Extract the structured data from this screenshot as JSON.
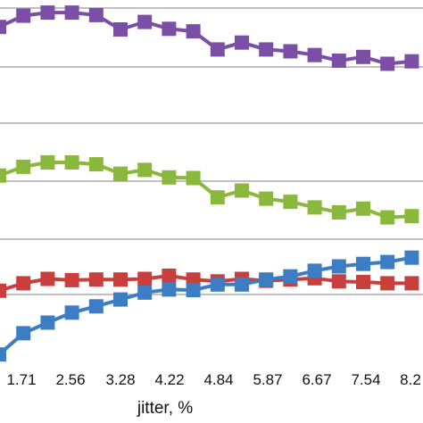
{
  "chart_data": {
    "type": "line",
    "xlabel": "jitter, %",
    "categories": [
      "0.85",
      "1.71",
      "2.12",
      "2.56",
      "2.90",
      "3.28",
      "3.74",
      "4.22",
      "4.52",
      "4.84",
      "5.38",
      "5.87",
      "6.29",
      "6.67",
      "7.12",
      "7.54",
      "7.90",
      "8.2"
    ],
    "tick_labels": [
      "1.71",
      "2.56",
      "3.28",
      "4.22",
      "4.84",
      "5.87",
      "6.67",
      "7.54",
      "8.2"
    ],
    "grid": true,
    "series": [
      {
        "color": "#7b4fa6",
        "values": [
          0.64,
          0.82,
          0.87,
          0.87,
          0.83,
          0.6,
          0.72,
          0.61,
          0.57,
          0.28,
          0.39,
          0.28,
          0.25,
          0.19,
          0.1,
          0.16,
          0.05,
          0.09
        ]
      },
      {
        "color": "#8ab83c",
        "values": [
          0.09,
          0.23,
          0.3,
          0.3,
          0.27,
          0.12,
          0.18,
          0.06,
          0.05,
          -0.26,
          -0.15,
          -0.28,
          -0.33,
          -0.42,
          -0.5,
          -0.44,
          -0.58,
          -0.56
        ]
      },
      {
        "color": "#c93f3d",
        "values": [
          0.06,
          0.18,
          0.25,
          0.23,
          0.24,
          0.24,
          0.25,
          0.3,
          0.24,
          0.21,
          0.25,
          0.22,
          0.24,
          0.26,
          0.21,
          0.2,
          0.18,
          0.18
        ]
      },
      {
        "color": "#3c7dc4",
        "values": [
          -0.96,
          -0.62,
          -0.45,
          -0.29,
          -0.19,
          -0.08,
          0.03,
          0.08,
          0.07,
          0.16,
          0.16,
          0.24,
          0.29,
          0.38,
          0.45,
          0.49,
          0.52,
          0.59
        ]
      }
    ]
  }
}
